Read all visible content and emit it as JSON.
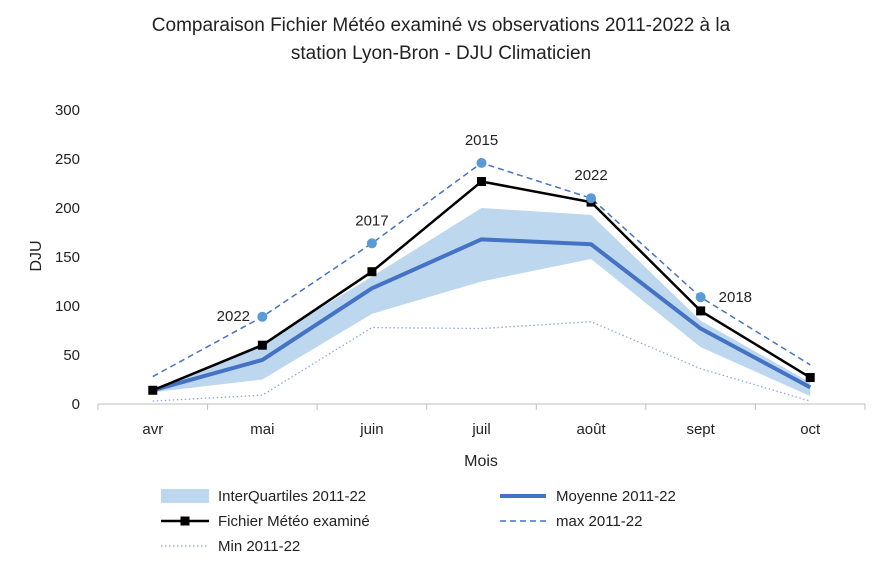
{
  "chart_data": {
    "type": "line",
    "title_line1": "Comparaison Fichier Météo examiné vs observations 2011-2022 à la",
    "title_line2": "station Lyon-Bron - DJU Climaticien",
    "xlabel": "Mois",
    "ylabel": "DJU",
    "categories": [
      "avr",
      "mai",
      "juin",
      "juil",
      "août",
      "sept",
      "oct"
    ],
    "ylim": [
      0,
      300
    ],
    "yticks": [
      0,
      50,
      100,
      150,
      200,
      250,
      300
    ],
    "grid": false,
    "legend_position": "bottom",
    "band": {
      "name": "InterQuartiles 2011-22",
      "lower": [
        12,
        25,
        92,
        125,
        148,
        58,
        8
      ],
      "upper": [
        14,
        62,
        130,
        200,
        193,
        85,
        22
      ],
      "color": "#bdd7ee"
    },
    "series": [
      {
        "name": "Moyenne 2011-22",
        "values": [
          14,
          45,
          118,
          168,
          163,
          77,
          17
        ],
        "color": "#4472c4",
        "style": "solid-thick"
      },
      {
        "name": "Fichier Météo examiné",
        "values": [
          14,
          60,
          135,
          227,
          206,
          95,
          27
        ],
        "color": "#000000",
        "style": "solid-markers"
      },
      {
        "name": "max 2011-22",
        "values": [
          28,
          89,
          164,
          246,
          210,
          109,
          40
        ],
        "color": "#4472c4",
        "style": "dashed"
      },
      {
        "name": "Min 2011-22",
        "values": [
          3,
          9,
          78,
          77,
          84,
          36,
          3
        ],
        "color": "#8eaadb",
        "style": "dotted"
      }
    ],
    "max_markers": [
      {
        "index": 1,
        "label": "2022"
      },
      {
        "index": 2,
        "label": "2017"
      },
      {
        "index": 3,
        "label": "2015"
      },
      {
        "index": 4,
        "label": "2022"
      },
      {
        "index": 5,
        "label": "2018"
      }
    ]
  }
}
